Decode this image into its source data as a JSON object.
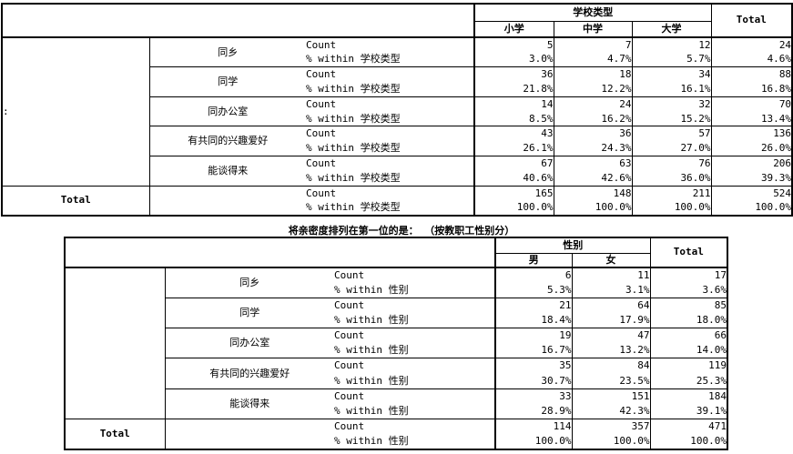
{
  "table1": {
    "stub_label": ":",
    "header": {
      "group": "学校类型",
      "columns": [
        "小学",
        "中学",
        "大学"
      ],
      "total": "Total"
    },
    "stat_labels": {
      "count": "Count",
      "percent": "% within 学校类型"
    },
    "rows": [
      {
        "label": "同乡",
        "count": [
          "5",
          "7",
          "12",
          "24"
        ],
        "percent": [
          "3.0%",
          "4.7%",
          "5.7%",
          "4.6%"
        ]
      },
      {
        "label": "同学",
        "count": [
          "36",
          "18",
          "34",
          "88"
        ],
        "percent": [
          "21.8%",
          "12.2%",
          "16.1%",
          "16.8%"
        ]
      },
      {
        "label": "同办公室",
        "count": [
          "14",
          "24",
          "32",
          "70"
        ],
        "percent": [
          "8.5%",
          "16.2%",
          "15.2%",
          "13.4%"
        ]
      },
      {
        "label": "有共同的兴趣爱好",
        "count": [
          "43",
          "36",
          "57",
          "136"
        ],
        "percent": [
          "26.1%",
          "24.3%",
          "27.0%",
          "26.0%"
        ]
      },
      {
        "label": "能谈得来",
        "count": [
          "67",
          "63",
          "76",
          "206"
        ],
        "percent": [
          "40.6%",
          "42.6%",
          "36.0%",
          "39.3%"
        ]
      }
    ],
    "total_row": {
      "label": "Total",
      "count": [
        "165",
        "148",
        "211",
        "524"
      ],
      "percent": [
        "100.0%",
        "100.0%",
        "100.0%",
        "100.0%"
      ]
    }
  },
  "table2": {
    "title": "将亲密度排列在第一位的是： （按教职工性别分）",
    "stub_label": "",
    "header": {
      "group": "性别",
      "columns": [
        "男",
        "女"
      ],
      "total": "Total"
    },
    "stat_labels": {
      "count": "Count",
      "percent": "% within 性别"
    },
    "rows": [
      {
        "label": "同乡",
        "count": [
          "6",
          "11",
          "17"
        ],
        "percent": [
          "5.3%",
          "3.1%",
          "3.6%"
        ]
      },
      {
        "label": "同学",
        "count": [
          "21",
          "64",
          "85"
        ],
        "percent": [
          "18.4%",
          "17.9%",
          "18.0%"
        ]
      },
      {
        "label": "同办公室",
        "count": [
          "19",
          "47",
          "66"
        ],
        "percent": [
          "16.7%",
          "13.2%",
          "14.0%"
        ]
      },
      {
        "label": "有共同的兴趣爱好",
        "count": [
          "35",
          "84",
          "119"
        ],
        "percent": [
          "30.7%",
          "23.5%",
          "25.3%"
        ]
      },
      {
        "label": "能谈得来",
        "count": [
          "33",
          "151",
          "184"
        ],
        "percent": [
          "28.9%",
          "42.3%",
          "39.1%"
        ]
      }
    ],
    "total_row": {
      "label": "Total",
      "count": [
        "114",
        "357",
        "471"
      ],
      "percent": [
        "100.0%",
        "100.0%",
        "100.0%"
      ]
    }
  }
}
